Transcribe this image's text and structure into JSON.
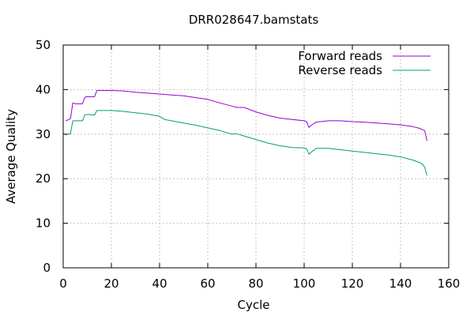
{
  "chart_data": {
    "type": "line",
    "title": "DRR028647.bamstats",
    "xlabel": "Cycle",
    "ylabel": "Average Quality",
    "xlim": [
      0,
      160
    ],
    "ylim": [
      0,
      50
    ],
    "xticks": [
      0,
      20,
      40,
      60,
      80,
      100,
      120,
      140,
      160
    ],
    "yticks": [
      0,
      10,
      20,
      30,
      40,
      50
    ],
    "grid": true,
    "legend_position": "top-right",
    "series": [
      {
        "name": "Forward reads",
        "color": "#9400d3",
        "points": [
          [
            1,
            33.0
          ],
          [
            2,
            33.2
          ],
          [
            3,
            33.5
          ],
          [
            4,
            37.0
          ],
          [
            5,
            36.8
          ],
          [
            6,
            36.8
          ],
          [
            7,
            36.8
          ],
          [
            8,
            36.8
          ],
          [
            9,
            38.3
          ],
          [
            10,
            38.4
          ],
          [
            11,
            38.4
          ],
          [
            12,
            38.4
          ],
          [
            13,
            38.4
          ],
          [
            14,
            39.8
          ],
          [
            15,
            39.8
          ],
          [
            20,
            39.8
          ],
          [
            25,
            39.7
          ],
          [
            30,
            39.4
          ],
          [
            35,
            39.2
          ],
          [
            40,
            39.0
          ],
          [
            45,
            38.8
          ],
          [
            50,
            38.6
          ],
          [
            55,
            38.2
          ],
          [
            60,
            37.8
          ],
          [
            65,
            37.0
          ],
          [
            70,
            36.3
          ],
          [
            72,
            36.0
          ],
          [
            75,
            36.0
          ],
          [
            80,
            35.0
          ],
          [
            85,
            34.2
          ],
          [
            90,
            33.6
          ],
          [
            95,
            33.3
          ],
          [
            100,
            33.0
          ],
          [
            101,
            32.8
          ],
          [
            102,
            31.5
          ],
          [
            103,
            32.0
          ],
          [
            105,
            32.7
          ],
          [
            110,
            33.0
          ],
          [
            115,
            33.0
          ],
          [
            120,
            32.8
          ],
          [
            125,
            32.7
          ],
          [
            130,
            32.5
          ],
          [
            135,
            32.3
          ],
          [
            140,
            32.1
          ],
          [
            145,
            31.7
          ],
          [
            148,
            31.3
          ],
          [
            149,
            31.0
          ],
          [
            150,
            30.8
          ],
          [
            151,
            28.5
          ]
        ]
      },
      {
        "name": "Reverse reads",
        "color": "#009e73",
        "points": [
          [
            1,
            29.8
          ],
          [
            2,
            30.0
          ],
          [
            3,
            30.1
          ],
          [
            4,
            33.0
          ],
          [
            5,
            33.0
          ],
          [
            6,
            33.0
          ],
          [
            7,
            33.0
          ],
          [
            8,
            33.0
          ],
          [
            9,
            34.4
          ],
          [
            10,
            34.4
          ],
          [
            11,
            34.4
          ],
          [
            12,
            34.3
          ],
          [
            13,
            34.3
          ],
          [
            14,
            35.3
          ],
          [
            15,
            35.3
          ],
          [
            20,
            35.3
          ],
          [
            25,
            35.1
          ],
          [
            30,
            34.8
          ],
          [
            35,
            34.5
          ],
          [
            38,
            34.2
          ],
          [
            40,
            34.0
          ],
          [
            42,
            33.3
          ],
          [
            45,
            33.0
          ],
          [
            50,
            32.5
          ],
          [
            55,
            32.0
          ],
          [
            60,
            31.4
          ],
          [
            65,
            30.8
          ],
          [
            70,
            30.0
          ],
          [
            72,
            30.1
          ],
          [
            75,
            29.6
          ],
          [
            80,
            28.8
          ],
          [
            85,
            28.0
          ],
          [
            90,
            27.4
          ],
          [
            95,
            27.0
          ],
          [
            100,
            26.9
          ],
          [
            101,
            26.7
          ],
          [
            102,
            25.5
          ],
          [
            103,
            26.0
          ],
          [
            105,
            26.8
          ],
          [
            110,
            26.8
          ],
          [
            115,
            26.5
          ],
          [
            120,
            26.2
          ],
          [
            125,
            25.9
          ],
          [
            130,
            25.6
          ],
          [
            135,
            25.3
          ],
          [
            140,
            24.9
          ],
          [
            145,
            24.2
          ],
          [
            148,
            23.6
          ],
          [
            149,
            23.3
          ],
          [
            150,
            22.6
          ],
          [
            151,
            20.7
          ]
        ]
      }
    ]
  }
}
